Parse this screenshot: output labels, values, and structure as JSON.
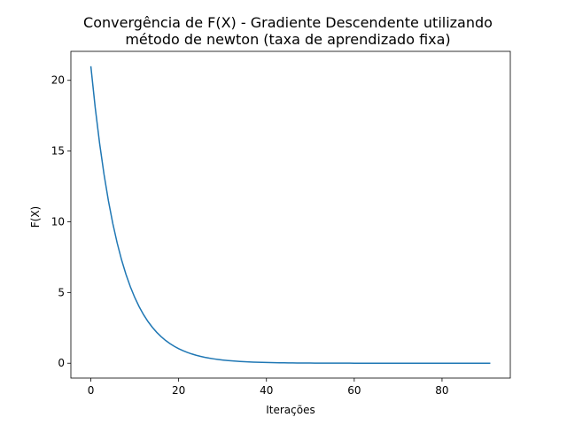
{
  "chart_data": {
    "type": "line",
    "title_lines": [
      "Convergência de F(X) - Gradiente Descendente utilizando",
      "método de newton (taxa de aprendizado fixa)"
    ],
    "xlabel": "Iterações",
    "ylabel": "F(X)",
    "xlim": [
      -4.55,
      95.55
    ],
    "ylim": [
      -1.05,
      22.05
    ],
    "x_ticks": [
      0,
      20,
      40,
      60,
      80
    ],
    "y_ticks": [
      0,
      5,
      10,
      15,
      20
    ],
    "grid": false,
    "series": [
      {
        "color": "#1f77b4",
        "x_start": 0,
        "x_end": 91,
        "initial_value": 21.0,
        "decay_ratio_per_iteration": 0.86
      }
    ]
  }
}
